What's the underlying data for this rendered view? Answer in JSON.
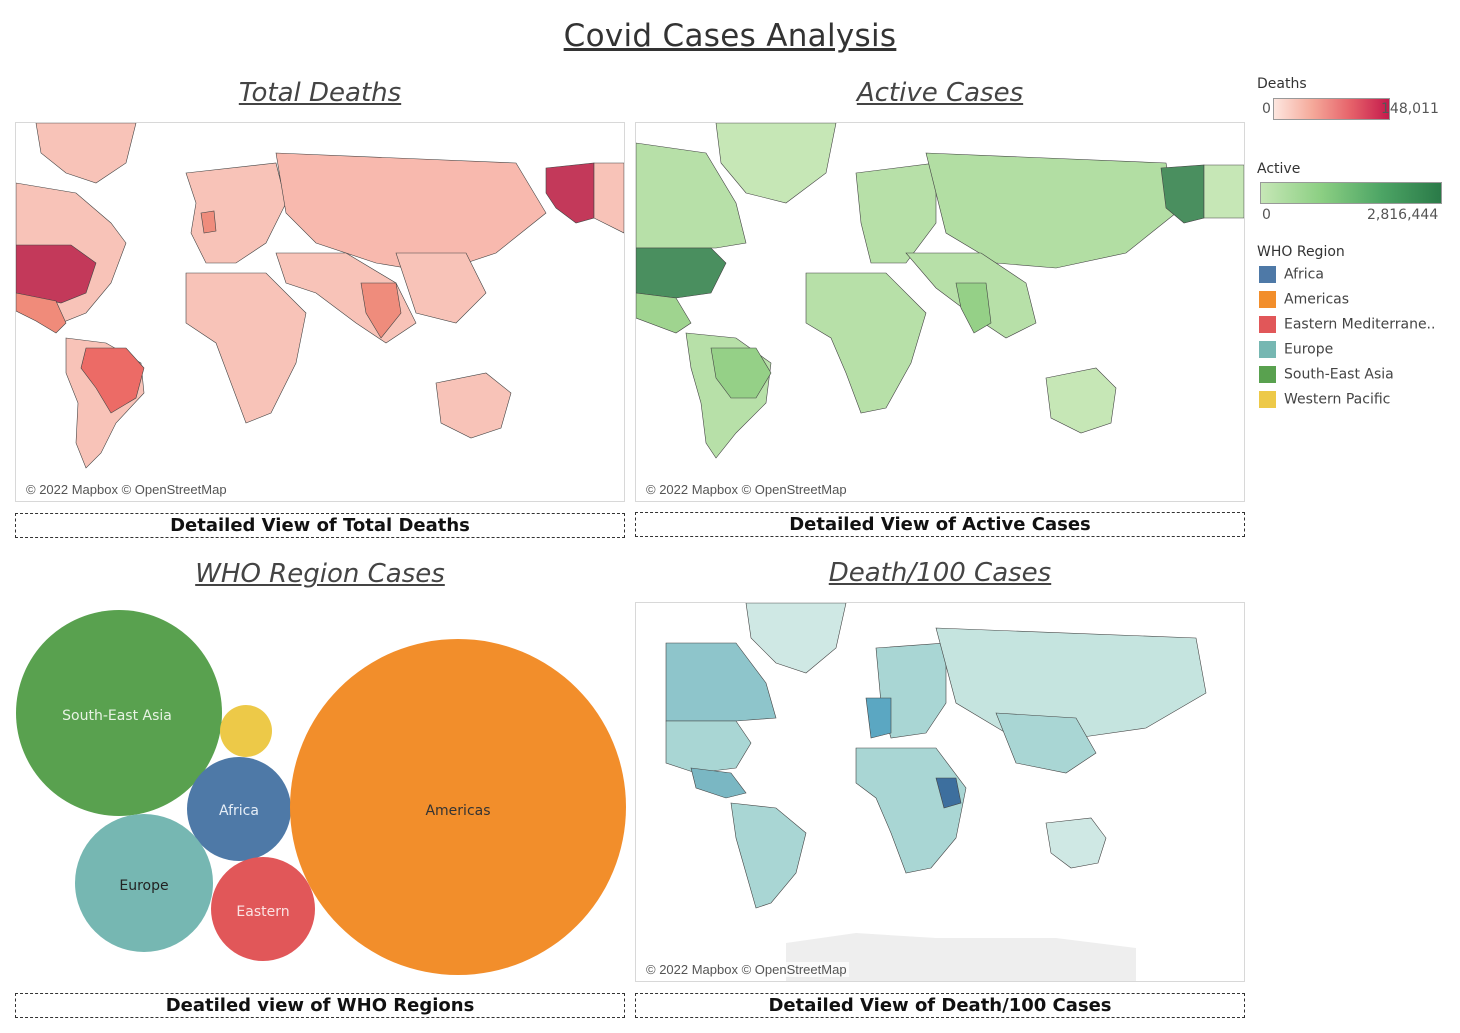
{
  "dashboard": {
    "title": "Covid Cases Analysis",
    "sheets": {
      "total_deaths": "Total Deaths",
      "active_cases": "Active Cases",
      "who_region": "WHO Region Cases",
      "death_per_100": "Death/100 Cases"
    },
    "attribution": "© 2022 Mapbox © OpenStreetMap",
    "buttons": {
      "total_deaths": "Detailed View of Total Deaths",
      "active_cases": "Detailed View of Active Cases",
      "who_regions": "Deatiled view of WHO Regions",
      "death_per_100": "Detailed View of Death/100 Cases"
    }
  },
  "legend": {
    "deaths": {
      "title": "Deaths",
      "min": "0",
      "max": "148,011",
      "colors": [
        "#fde6df",
        "#c41a4c"
      ]
    },
    "active": {
      "title": "Active",
      "min": "0",
      "max": "2,816,444",
      "colors": [
        "#c6e7b6",
        "#2a7a48"
      ]
    },
    "who_region": {
      "title": "WHO Region",
      "items": [
        {
          "label": "Africa",
          "color": "#4e79a7"
        },
        {
          "label": "Americas",
          "color": "#f28e2b"
        },
        {
          "label": "Eastern Mediterrane..",
          "color": "#e15759"
        },
        {
          "label": "Europe",
          "color": "#76b7b2"
        },
        {
          "label": "South-East Asia",
          "color": "#59a14f"
        },
        {
          "label": "Western Pacific",
          "color": "#edc948"
        }
      ]
    }
  },
  "bubbles": [
    {
      "label": "South-East Asia",
      "color": "#59a14f",
      "text_color": "#e8f3e4"
    },
    {
      "label": "",
      "color": "#edc948",
      "text_color": "#333333"
    },
    {
      "label": "Africa",
      "color": "#4e79a7",
      "text_color": "#e6eef7"
    },
    {
      "label": "Americas",
      "color": "#f28e2b",
      "text_color": "#333333"
    },
    {
      "label": "Europe",
      "color": "#76b7b2",
      "text_color": "#222222"
    },
    {
      "label": "Eastern",
      "color": "#e15759",
      "text_color": "#fbe3e3"
    }
  ]
}
